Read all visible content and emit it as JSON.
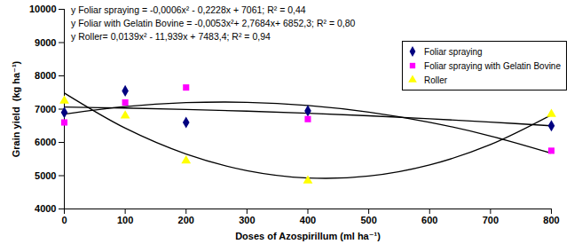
{
  "chart_data": {
    "type": "scatter",
    "xlabel": "Doses of Azospirillum (ml ha⁻¹)",
    "ylabel": "Grain yield  (kg ha⁻¹)",
    "xlim": [
      0,
      800
    ],
    "xticks": [
      0,
      100,
      200,
      300,
      400,
      500,
      600,
      700,
      800
    ],
    "ylim": [
      4000,
      10000
    ],
    "yticks": [
      4000,
      5000,
      6000,
      7000,
      8000,
      9000,
      10000
    ],
    "legend": "top-right",
    "series": [
      {
        "name": "Foliar spraying",
        "type": "scatter",
        "marker": "diamond",
        "color": "#000080",
        "x": [
          0,
          100,
          200,
          400,
          800
        ],
        "values": [
          6900,
          7550,
          6600,
          6950,
          6500
        ]
      },
      {
        "name": "Foliar spraying with Gelatin Bovine",
        "type": "scatter",
        "marker": "square",
        "color": "#ff00ff",
        "x": [
          0,
          100,
          200,
          400,
          800
        ],
        "values": [
          6600,
          7200,
          7650,
          6700,
          5750
        ]
      },
      {
        "name": "Roller",
        "type": "scatter",
        "marker": "triangle",
        "color": "#ffff00",
        "x": [
          0,
          100,
          200,
          400,
          800
        ],
        "values": [
          7250,
          6800,
          5450,
          4850,
          6850
        ]
      },
      {
        "name": "y Foliar spraying = -0,0006x² - 0,2228x + 7061; R² = 0,44",
        "type": "line",
        "color": "#000000",
        "x": [
          0,
          100,
          200,
          300,
          400,
          500,
          600,
          700,
          800
        ],
        "values": [
          7061,
          7033,
          6992,
          6940,
          6876,
          6800,
          6711,
          6611,
          6499
        ]
      },
      {
        "name": "y Foliar with Gelatin Bovine = -0,0053x²+ 2,7684x+ 6852,3; R² = 0,80",
        "type": "line",
        "color": "#000000",
        "x": [
          0,
          100,
          200,
          300,
          400,
          500,
          600,
          700,
          800
        ],
        "values": [
          6852,
          7076,
          7194,
          7206,
          7111,
          6911,
          6605,
          6193,
          5675
        ]
      },
      {
        "name": "y Roller= 0,0139x² - 11,939x + 7483,4; R² = 0,94",
        "type": "line",
        "color": "#000000",
        "x": [
          0,
          100,
          200,
          300,
          400,
          500,
          600,
          700,
          800
        ],
        "values": [
          7483,
          6428,
          5651,
          5152,
          4932,
          4989,
          5324,
          5937,
          6828
        ]
      }
    ]
  }
}
